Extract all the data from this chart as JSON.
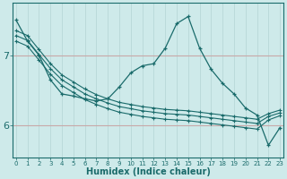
{
  "xlabel": "Humidex (Indice chaleur)",
  "background_color": "#ceeaea",
  "vgrid_color": "#b8d8d8",
  "hgrid_color": "#c8a8a8",
  "line_color": "#1a6b6b",
  "x_ticks": [
    0,
    1,
    2,
    3,
    4,
    5,
    6,
    7,
    8,
    9,
    10,
    11,
    12,
    13,
    14,
    15,
    16,
    17,
    18,
    19,
    20,
    21,
    22,
    23
  ],
  "y_ticks": [
    6,
    7
  ],
  "xlim": [
    -0.3,
    23.3
  ],
  "ylim": [
    5.55,
    7.75
  ],
  "series_main": [
    7.5,
    7.2,
    7.0,
    6.65,
    6.45,
    6.42,
    6.38,
    6.35,
    6.38,
    6.55,
    6.75,
    6.85,
    6.88,
    7.1,
    7.45,
    7.55,
    7.1,
    6.8,
    6.6,
    6.45,
    6.25,
    6.15,
    5.72,
    5.97
  ],
  "series_linear": [
    [
      7.35,
      7.28,
      7.08,
      6.88,
      6.72,
      6.62,
      6.52,
      6.44,
      6.38,
      6.33,
      6.3,
      6.27,
      6.25,
      6.23,
      6.22,
      6.21,
      6.19,
      6.17,
      6.15,
      6.13,
      6.11,
      6.09,
      6.17,
      6.22
    ],
    [
      7.28,
      7.21,
      7.01,
      6.81,
      6.65,
      6.55,
      6.45,
      6.38,
      6.32,
      6.27,
      6.24,
      6.21,
      6.19,
      6.17,
      6.16,
      6.15,
      6.13,
      6.11,
      6.09,
      6.07,
      6.05,
      6.03,
      6.13,
      6.18
    ],
    [
      7.2,
      7.13,
      6.93,
      6.73,
      6.57,
      6.47,
      6.37,
      6.3,
      6.24,
      6.19,
      6.16,
      6.13,
      6.11,
      6.09,
      6.08,
      6.07,
      6.05,
      6.03,
      6.01,
      5.99,
      5.97,
      5.95,
      6.08,
      6.14
    ]
  ]
}
